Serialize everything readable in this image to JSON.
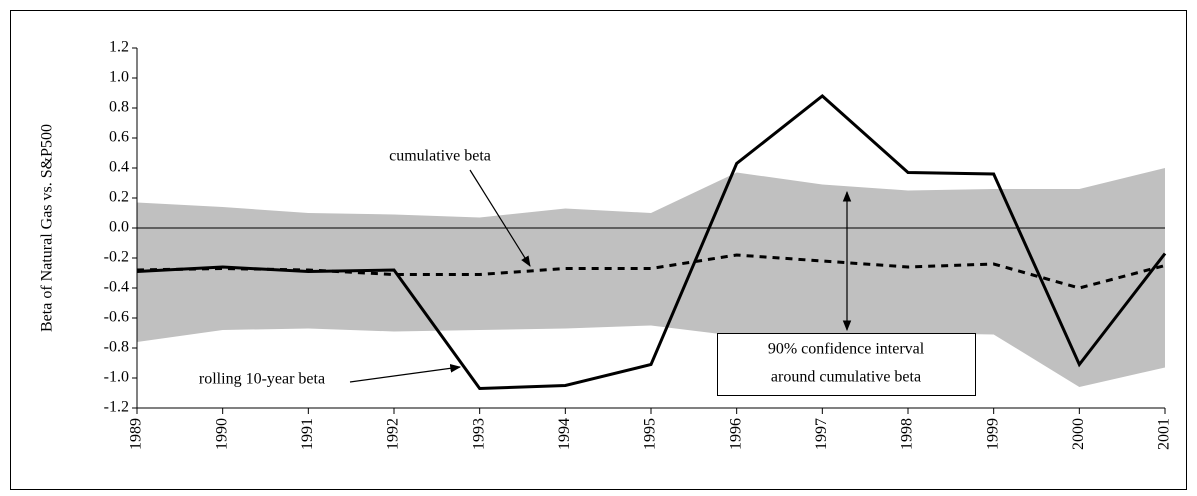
{
  "chart_data": {
    "type": "line",
    "y_label": "Beta of Natural Gas vs. S&P500",
    "x": [
      1989,
      1990,
      1991,
      1992,
      1993,
      1994,
      1995,
      1996,
      1997,
      1998,
      1999,
      2000,
      2001
    ],
    "xlim": [
      1989,
      2001
    ],
    "xticks": [
      1989,
      1990,
      1991,
      1992,
      1993,
      1994,
      1995,
      1996,
      1997,
      1998,
      1999,
      2000,
      2001
    ],
    "ylim": [
      -1.2,
      1.2
    ],
    "yticks": [
      {
        "value": -1.2,
        "label": "-1.2"
      },
      {
        "value": -1.0,
        "label": "-1.0"
      },
      -0.8,
      -0.6,
      -0.4,
      -0.2,
      {
        "value": 0,
        "label": "0.0"
      },
      0.2,
      0.4,
      0.6,
      0.8,
      {
        "value": 1.0,
        "label": "1.0"
      },
      1.2
    ],
    "series": [
      {
        "name": "rolling 10-year beta",
        "color": "#000000",
        "dash": false,
        "values": [
          -0.29,
          -0.26,
          -0.29,
          -0.28,
          -1.07,
          -1.05,
          -0.91,
          0.43,
          0.88,
          0.37,
          0.36,
          -0.91,
          -0.17
        ]
      },
      {
        "name": "cumulative beta",
        "color": "#000000",
        "dash": true,
        "values": [
          -0.28,
          -0.27,
          -0.28,
          -0.31,
          -0.31,
          -0.27,
          -0.27,
          -0.18,
          -0.22,
          -0.26,
          -0.24,
          -0.4,
          -0.25
        ]
      }
    ],
    "band": {
      "color": "#c0c0c0",
      "label": [
        "90% confidence interval",
        "around cumulative beta"
      ],
      "upper": [
        0.17,
        0.14,
        0.1,
        0.09,
        0.07,
        0.13,
        0.1,
        0.37,
        0.29,
        0.25,
        0.26,
        0.26,
        0.4
      ],
      "lower": [
        -0.76,
        -0.68,
        -0.67,
        -0.69,
        -0.68,
        -0.67,
        -0.65,
        -0.72,
        -0.74,
        -0.7,
        -0.71,
        -1.06,
        -0.93
      ]
    }
  }
}
